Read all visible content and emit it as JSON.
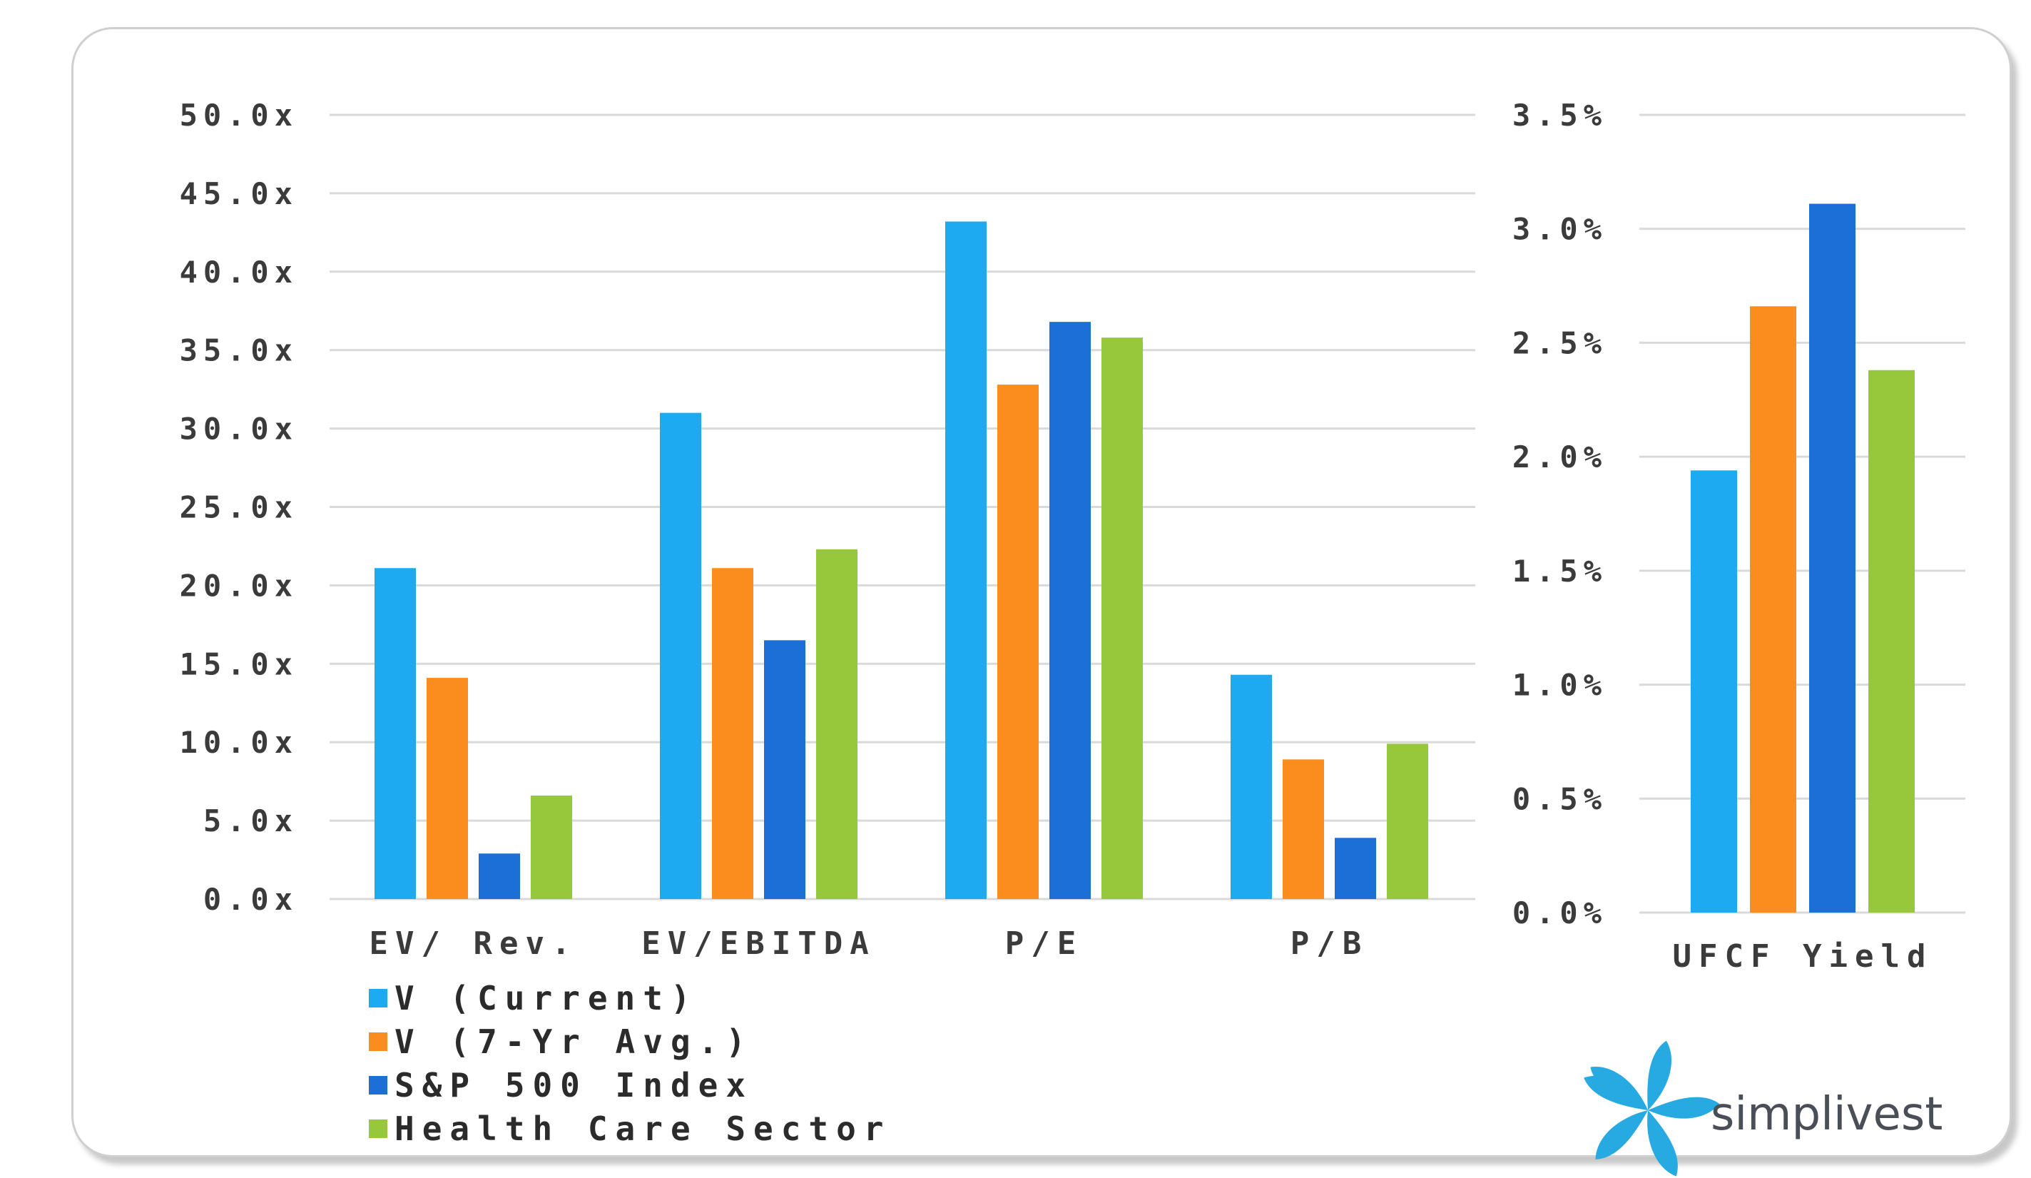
{
  "brand": {
    "name": "simplivest",
    "logo_icon": "petal-logo-icon",
    "logo_color": "#27a9e1"
  },
  "chart_data": [
    {
      "type": "bar",
      "categories": [
        "EV/ Rev.",
        "EV/EBITDA",
        "P/E",
        "P/B"
      ],
      "series": [
        {
          "name": "V (Current)",
          "color": "#1eaaf1",
          "values": [
            21.1,
            31.0,
            43.2,
            14.3
          ]
        },
        {
          "name": "V (7-Yr Avg.)",
          "color": "#fb8c1e",
          "values": [
            14.1,
            21.1,
            32.8,
            8.9
          ]
        },
        {
          "name": "S&P 500 Index",
          "color": "#1c6fd6",
          "values": [
            2.9,
            16.5,
            36.8,
            3.9
          ]
        },
        {
          "name": "Health Care Sector",
          "color": "#97c83c",
          "values": [
            6.6,
            22.3,
            35.8,
            9.9
          ]
        }
      ],
      "ylim": [
        0,
        50
      ],
      "yticks": [
        "0.0x",
        "5.0x",
        "10.0x",
        "15.0x",
        "20.0x",
        "25.0x",
        "30.0x",
        "35.0x",
        "40.0x",
        "45.0x",
        "50.0x"
      ],
      "grid": true,
      "legend_position": "bottom-left"
    },
    {
      "type": "bar",
      "categories": [
        "UFCF Yield"
      ],
      "series": [
        {
          "name": "V (Current)",
          "color": "#1eaaf1",
          "values": [
            1.94
          ]
        },
        {
          "name": "V (7-Yr Avg.)",
          "color": "#fb8c1e",
          "values": [
            2.66
          ]
        },
        {
          "name": "S&P 500 Index",
          "color": "#1c6fd6",
          "values": [
            3.11
          ]
        },
        {
          "name": "Health Care Sector",
          "color": "#97c83c",
          "values": [
            2.38
          ]
        }
      ],
      "ylim": [
        0,
        3.5
      ],
      "yticks": [
        "0.0%",
        "0.5%",
        "1.0%",
        "1.5%",
        "2.0%",
        "2.5%",
        "3.0%",
        "3.5%"
      ],
      "grid": true
    }
  ]
}
